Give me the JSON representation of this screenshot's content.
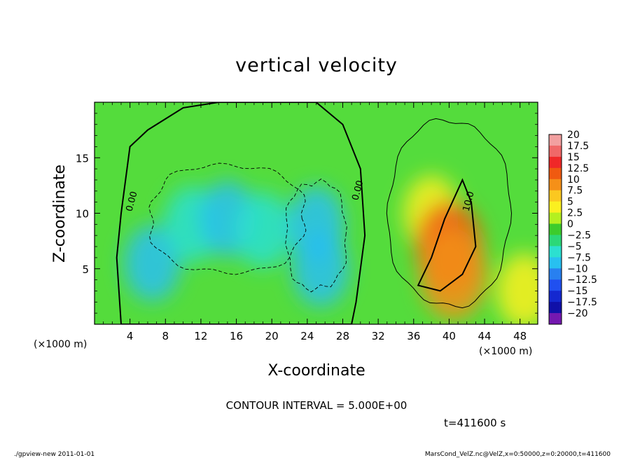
{
  "chart_data": {
    "type": "heatmap",
    "title": "vertical velocity",
    "xlabel": "X-coordinate",
    "ylabel": "Z-coordinate",
    "x_unit": "(×1000 m)",
    "y_unit": "(×1000 m)",
    "xlim": [
      0,
      50
    ],
    "ylim": [
      0,
      20
    ],
    "x_ticks": [
      "4",
      "8",
      "12",
      "16",
      "20",
      "24",
      "28",
      "32",
      "36",
      "40",
      "44",
      "48"
    ],
    "x_tick_values": [
      4,
      8,
      12,
      16,
      20,
      24,
      28,
      32,
      36,
      40,
      44,
      48
    ],
    "y_ticks": [
      "5",
      "10",
      "15"
    ],
    "y_tick_values": [
      5,
      10,
      15
    ],
    "colorbar_labels": [
      "20",
      "17.5",
      "15",
      "12.5",
      "10",
      "7.5",
      "5",
      "2.5",
      "0",
      "−2.5",
      "−5",
      "−7.5",
      "−10",
      "−12.5",
      "−15",
      "−17.5",
      "−20"
    ],
    "colorbar_colors": [
      "#f2a0a0",
      "#f06868",
      "#f02828",
      "#f05a10",
      "#f59018",
      "#fbc820",
      "#fbf020",
      "#b4f020",
      "#3ccc2c",
      "#2cd878",
      "#2ce0d0",
      "#28c0f0",
      "#2880f0",
      "#2050f0",
      "#1428d0",
      "#1010a8",
      "#7418b0"
    ],
    "contour_labels": [
      "0.00",
      "0.00",
      "10.0"
    ],
    "contour_interval": "CONTOUR INTERVAL = 5.000E+00",
    "time": "t=411600 s",
    "features": [
      {
        "x": 6.5,
        "z": 5.5,
        "value": -7
      },
      {
        "x": 11,
        "z": 9,
        "value": -5
      },
      {
        "x": 15,
        "z": 9.5,
        "value": -7.5
      },
      {
        "x": 19,
        "z": 8.5,
        "value": -5
      },
      {
        "x": 25,
        "z": 9,
        "value": -6.5
      },
      {
        "x": 25.5,
        "z": 5,
        "value": -7
      },
      {
        "x": 38,
        "z": 10,
        "value": 6
      },
      {
        "x": 40,
        "z": 7,
        "value": 12
      },
      {
        "x": 40.5,
        "z": 4.5,
        "value": 11
      },
      {
        "x": 48.5,
        "z": 3,
        "value": 6
      }
    ]
  },
  "footer": {
    "left": "./gpview-new   2011-01-01",
    "right": "MarsCond_VelZ.nc@VelZ,x=0:50000,z=0:20000,t=411600"
  }
}
